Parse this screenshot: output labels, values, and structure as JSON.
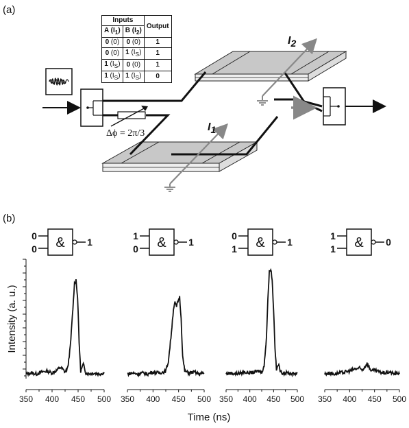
{
  "panel_a": {
    "label": "(a)",
    "truth_table": {
      "inputs_header": "Inputs",
      "col_a": "A (I",
      "col_a_sub": "1",
      "col_b": "B (I",
      "col_b_sub": "2",
      "col_close": ")",
      "output_header": "Output",
      "rows": [
        {
          "a": "0",
          "a_sub": "(0)",
          "b": "0",
          "b_sub": "(0)",
          "out": "1"
        },
        {
          "a": "0",
          "a_sub": "(0)",
          "b": "1",
          "b_sub": "(I",
          "b_subsub": "S",
          "out": "1"
        },
        {
          "a": "1",
          "a_sub": "(I",
          "a_subsub": "S",
          "b": "0",
          "b_sub": "(0)",
          "out": "1"
        },
        {
          "a": "1",
          "a_sub": "(I",
          "a_subsub": "S",
          "b": "1",
          "b_sub": "(I",
          "b_subsub": "S",
          "out": "0"
        }
      ]
    },
    "current_labels": {
      "i2": "I",
      "i2_sub": "2",
      "i1": "I",
      "i1_sub": "1"
    },
    "phase_label": "Δϕ = 2π/3"
  },
  "panel_b": {
    "label": "(b)",
    "ylabel": "Intensity (a. u.)",
    "xlabel": "Time (ns)",
    "gate_symbol": "&",
    "gates": [
      {
        "in1": "0",
        "in2": "0",
        "out": "1"
      },
      {
        "in1": "1",
        "in2": "0",
        "out": "1"
      },
      {
        "in1": "0",
        "in2": "1",
        "out": "1"
      },
      {
        "in1": "1",
        "in2": "1",
        "out": "0"
      }
    ]
  },
  "chart_data": [
    {
      "type": "line",
      "x": [
        350,
        360,
        370,
        380,
        390,
        400,
        410,
        415,
        420,
        425,
        430,
        435,
        440,
        443,
        446,
        449,
        452,
        455,
        460,
        465,
        470,
        480,
        490,
        500
      ],
      "y": [
        0.02,
        0.03,
        0.02,
        0.04,
        0.05,
        0.03,
        0.06,
        0.09,
        0.07,
        0.04,
        0.08,
        0.3,
        0.7,
        0.96,
        1.0,
        0.82,
        0.35,
        0.05,
        0.12,
        0.03,
        0.02,
        0.03,
        0.02,
        0.03
      ],
      "xlim": [
        350,
        500
      ],
      "xticks": [
        "350",
        "400",
        "450",
        "500"
      ],
      "xlabel": "Time (ns)"
    },
    {
      "type": "line",
      "x": [
        350,
        360,
        370,
        380,
        390,
        400,
        410,
        420,
        425,
        430,
        435,
        440,
        443,
        446,
        449,
        452,
        455,
        458,
        462,
        470,
        480,
        490,
        500
      ],
      "y": [
        0.02,
        0.03,
        0.02,
        0.03,
        0.02,
        0.04,
        0.03,
        0.04,
        0.05,
        0.15,
        0.4,
        0.7,
        0.76,
        0.72,
        0.78,
        0.82,
        0.6,
        0.2,
        0.05,
        0.03,
        0.04,
        0.02,
        0.03
      ],
      "xlim": [
        350,
        500
      ],
      "xticks": [
        "350",
        "400",
        "450",
        "500"
      ],
      "xlabel": "Time (ns)"
    },
    {
      "type": "line",
      "x": [
        350,
        360,
        370,
        380,
        390,
        400,
        410,
        420,
        425,
        430,
        435,
        438,
        441,
        444,
        447,
        450,
        453,
        456,
        460,
        465,
        470,
        480,
        490,
        500
      ],
      "y": [
        0.02,
        0.03,
        0.02,
        0.03,
        0.04,
        0.03,
        0.04,
        0.05,
        0.04,
        0.1,
        0.4,
        0.8,
        1.08,
        1.12,
        1.0,
        0.7,
        0.3,
        0.06,
        0.12,
        0.04,
        0.03,
        0.03,
        0.02,
        0.03
      ],
      "xlim": [
        350,
        500
      ],
      "xticks": [
        "350",
        "400",
        "450",
        "500"
      ],
      "xlabel": "Time (ns)"
    },
    {
      "type": "line",
      "x": [
        350,
        360,
        370,
        380,
        390,
        400,
        410,
        420,
        425,
        430,
        435,
        440,
        445,
        450,
        460,
        470,
        480,
        490,
        500
      ],
      "y": [
        0.02,
        0.03,
        0.02,
        0.03,
        0.04,
        0.05,
        0.07,
        0.08,
        0.06,
        0.09,
        0.13,
        0.08,
        0.05,
        0.06,
        0.04,
        0.03,
        0.04,
        0.02,
        0.03
      ],
      "xlim": [
        350,
        500
      ],
      "xticks": [
        "350",
        "400",
        "450",
        "500"
      ],
      "xlabel": "Time (ns)"
    }
  ]
}
